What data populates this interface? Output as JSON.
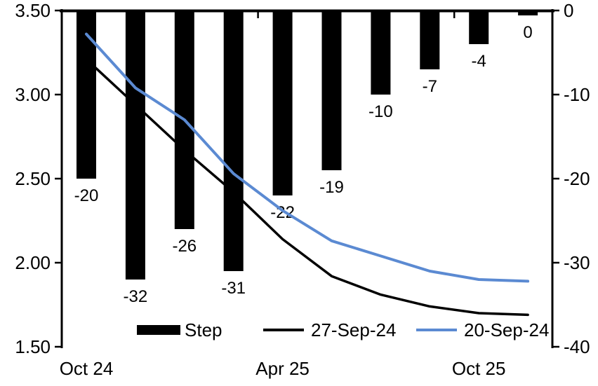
{
  "chart_data": {
    "type": "bar",
    "subtype": "combo-bar-line",
    "n_categories": 10,
    "x_tick_labels": [
      {
        "index": 0,
        "label": "Oct 24"
      },
      {
        "index": 4,
        "label": "Apr 25"
      },
      {
        "index": 8,
        "label": "Oct 25"
      }
    ],
    "left_axis": {
      "min": 1.5,
      "max": 3.5,
      "tick_labels": [
        "3.50",
        "3.00",
        "2.50",
        "2.00",
        "1.50"
      ],
      "tick_values": [
        3.5,
        3.0,
        2.5,
        2.0,
        1.5
      ]
    },
    "right_axis": {
      "min": -40,
      "max": 0,
      "tick_labels": [
        "0",
        "-10",
        "-20",
        "-30",
        "-40"
      ],
      "tick_values": [
        0,
        -10,
        -20,
        -30,
        -40
      ]
    },
    "series": [
      {
        "name": "Step",
        "type": "bar",
        "axis": "right",
        "color": "#000000",
        "values": [
          -20,
          -32,
          -26,
          -31,
          -22,
          -19,
          -10,
          -7,
          -4,
          0
        ],
        "data_labels": [
          "-20",
          "-32",
          "-26",
          "-31",
          "-22",
          "-19",
          "-10",
          "-7",
          "-4",
          "0"
        ]
      },
      {
        "name": "27-Sep-24",
        "type": "line",
        "axis": "left",
        "color": "#000000",
        "values": [
          3.21,
          2.94,
          2.67,
          2.42,
          2.14,
          1.92,
          1.81,
          1.74,
          1.7,
          1.69
        ]
      },
      {
        "name": "20-Sep-24",
        "type": "line",
        "axis": "left",
        "color": "#5b8ad2",
        "values": [
          3.36,
          3.04,
          2.85,
          2.53,
          2.31,
          2.13,
          2.04,
          1.95,
          1.9,
          1.89
        ]
      }
    ],
    "legend": {
      "position": "bottom",
      "entries": [
        "Step",
        "27-Sep-24",
        "20-Sep-24"
      ]
    },
    "grid": "off",
    "colors": {
      "bar": "#000000",
      "line_27sep": "#000000",
      "line_20sep": "#5b8ad2",
      "axis": "#000000",
      "background": "#ffffff"
    }
  }
}
